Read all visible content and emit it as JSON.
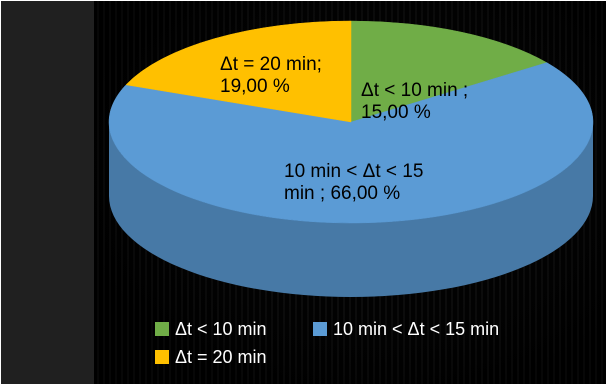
{
  "chart_data": {
    "type": "pie",
    "style": "3d",
    "title": "",
    "slices": [
      {
        "key": "lt10",
        "name": "Δt < 10 min",
        "value": 15.0,
        "color": "#70ad47",
        "data_label_lines": [
          "Δt < 10 min ;",
          "15,00 %"
        ]
      },
      {
        "key": "mid",
        "name": "10 min < Δt < 15 min",
        "value": 66.0,
        "color": "#5b9bd5",
        "data_label_lines": [
          "10 min < Δt < 15",
          "min ; 66,00 %"
        ]
      },
      {
        "key": "eq20",
        "name": "Δt = 20 min",
        "value": 19.0,
        "color": "#ffc000",
        "data_label_lines": [
          "Δt = 20 min;",
          "19,00 %"
        ]
      }
    ],
    "legend": {
      "position": "bottom",
      "entries": [
        "Δt < 10 min",
        "10 min < Δt < 15 min",
        "Δt = 20 min"
      ]
    }
  },
  "colors": {
    "background": "#202020",
    "panel": "#000000",
    "frame_border": "#ffffff"
  }
}
